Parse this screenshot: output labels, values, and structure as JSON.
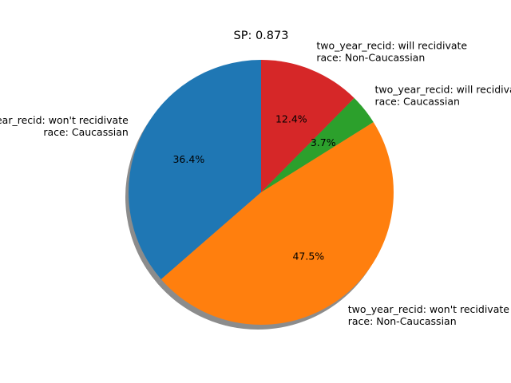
{
  "chart_data": {
    "type": "pie",
    "title": "SP: 0.873",
    "shadow": true,
    "start_angle_deg": 90,
    "direction": "counterclockwise",
    "slices": [
      {
        "label_lines": [
          "two_year_recid: won't recidivate",
          "race: Caucassian"
        ],
        "value": 36.4,
        "pct_label": "36.4%",
        "color": "#1f77b4"
      },
      {
        "label_lines": [
          "two_year_recid: won't recidivate",
          "race: Non-Caucassian"
        ],
        "value": 47.5,
        "pct_label": "47.5%",
        "color": "#ff7f0e"
      },
      {
        "label_lines": [
          "two_year_recid: will recidivate",
          "race: Caucassian"
        ],
        "value": 3.7,
        "pct_label": "3.7%",
        "color": "#2ca02c"
      },
      {
        "label_lines": [
          "two_year_recid: will recidivate",
          "race: Non-Caucassian"
        ],
        "value": 12.4,
        "pct_label": "12.4%",
        "color": "#d62728"
      }
    ]
  }
}
